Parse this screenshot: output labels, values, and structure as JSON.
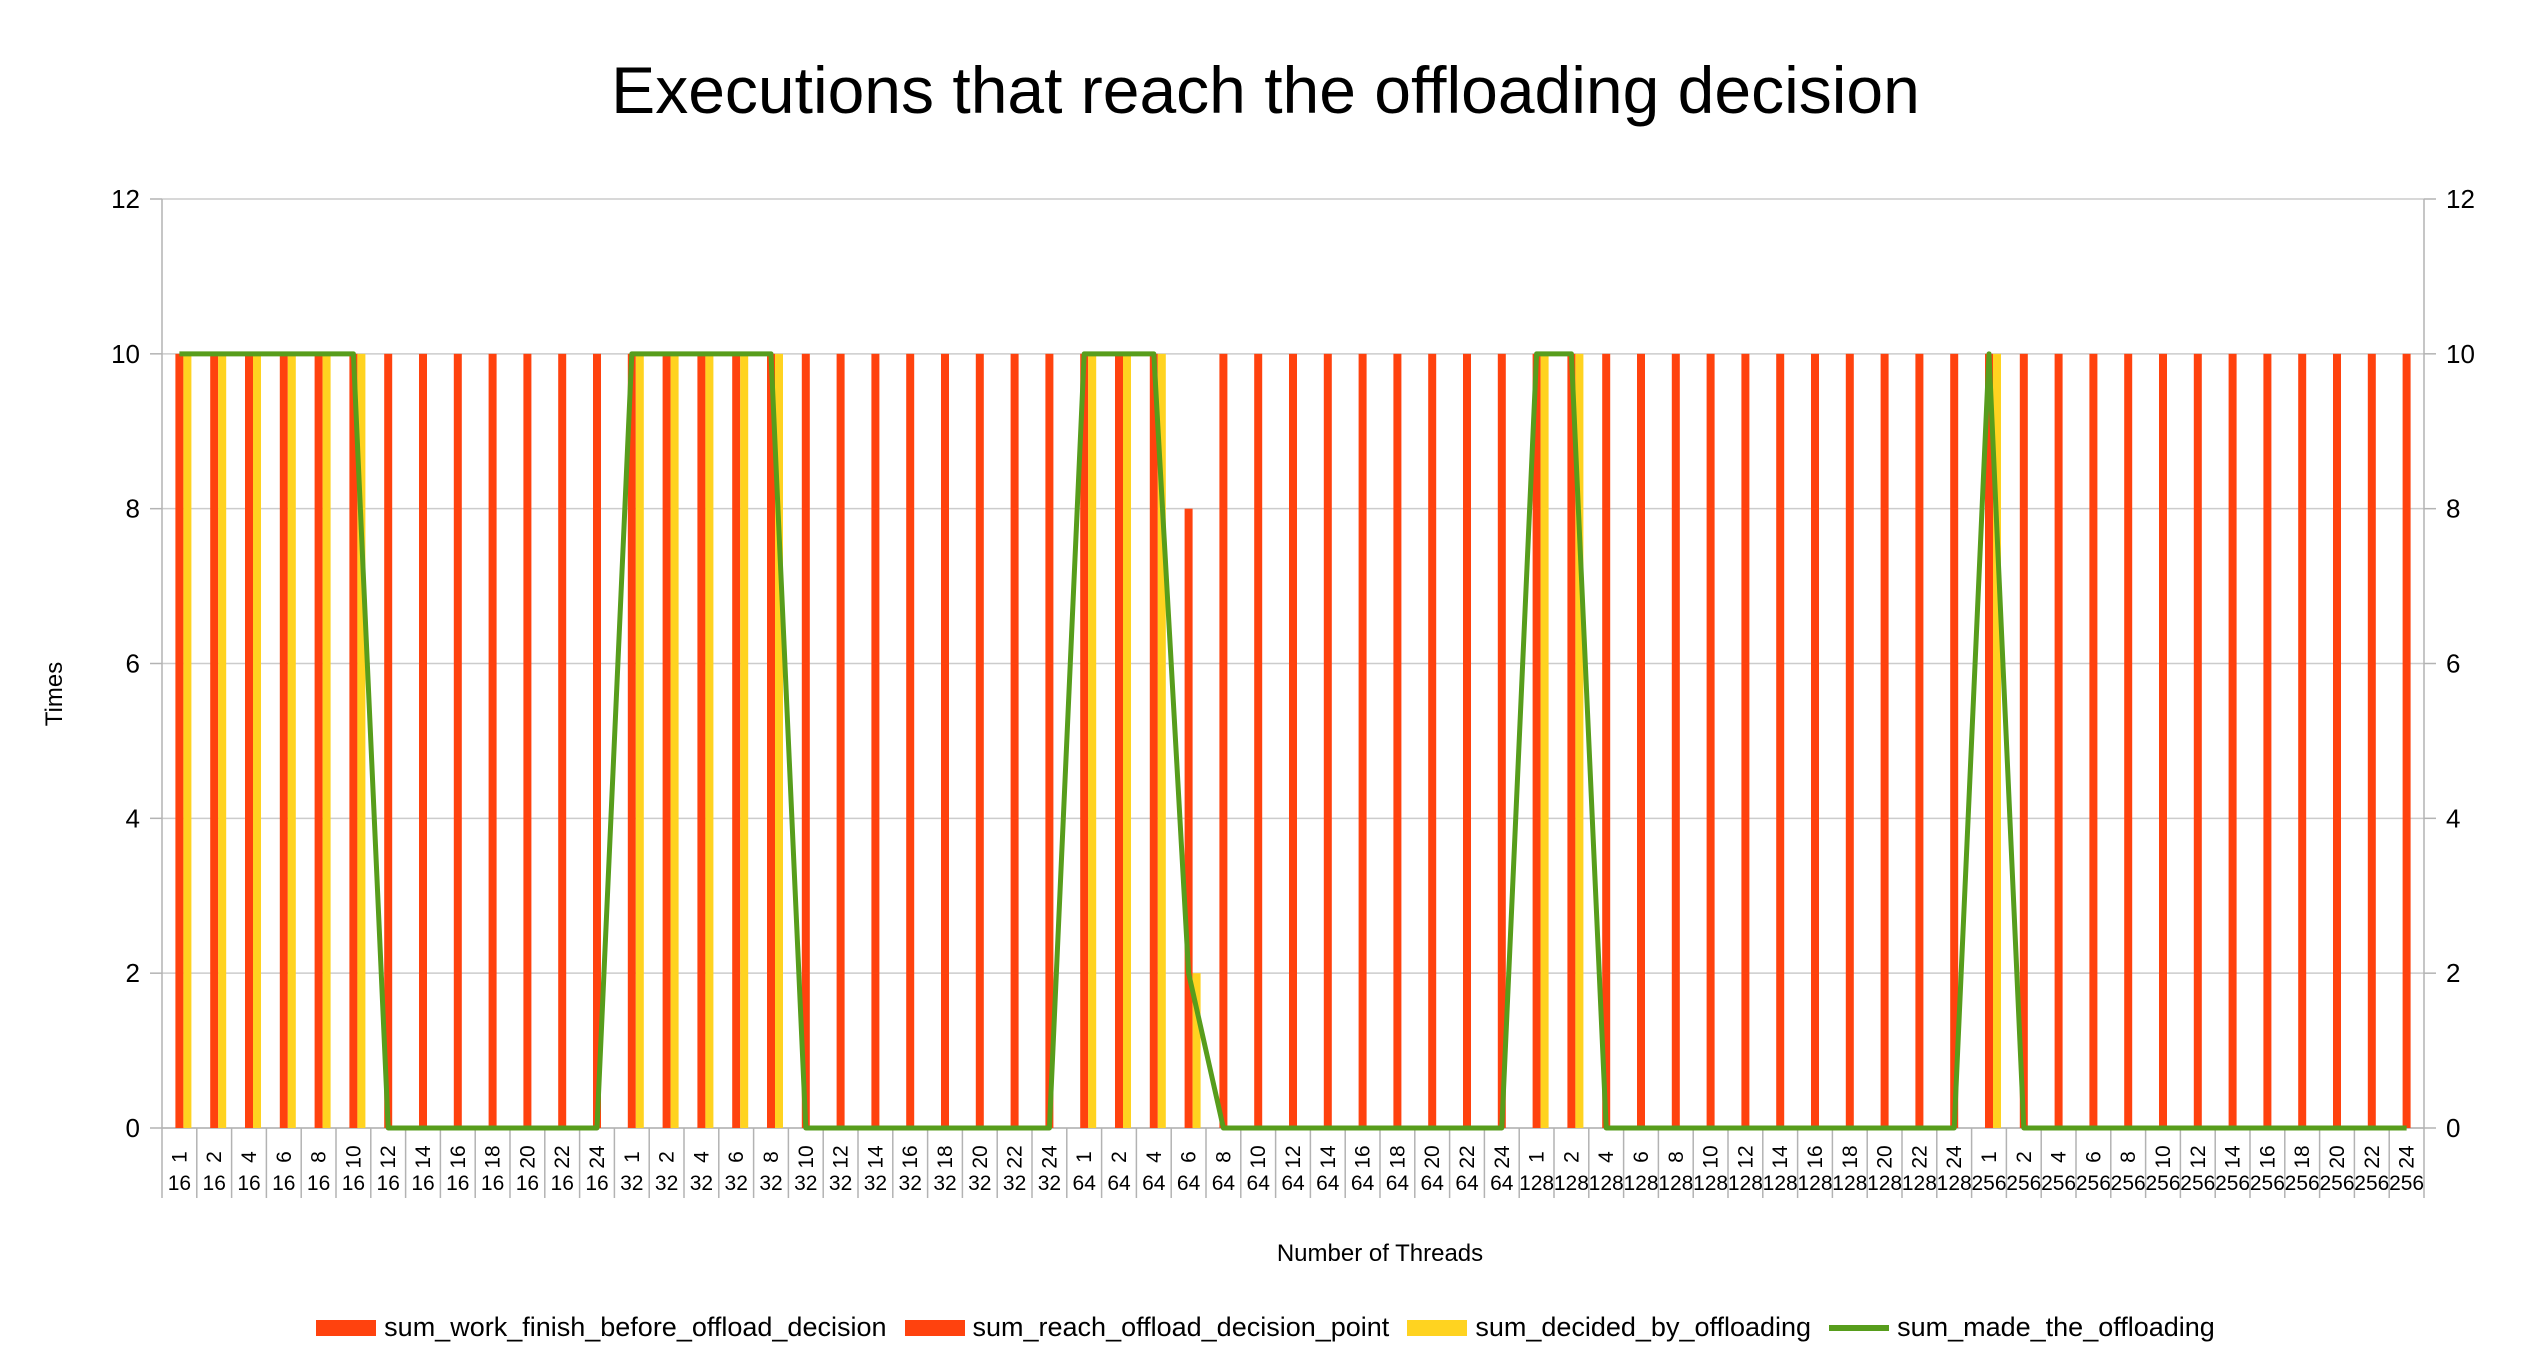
{
  "chart_data": {
    "type": "bar",
    "title": "Executions that reach the offloading decision",
    "xlabel": "Number of Threads",
    "ylabel": "Times",
    "ylim": [
      0,
      12
    ],
    "yticks": [
      "0",
      "2",
      "4",
      "6",
      "8",
      "10",
      "12"
    ],
    "grid": true,
    "legend_position": "bottom",
    "categories": [
      {
        "top": "1",
        "bottom": "16"
      },
      {
        "top": "2",
        "bottom": "16"
      },
      {
        "top": "4",
        "bottom": "16"
      },
      {
        "top": "6",
        "bottom": "16"
      },
      {
        "top": "8",
        "bottom": "16"
      },
      {
        "top": "10",
        "bottom": "16"
      },
      {
        "top": "12",
        "bottom": "16"
      },
      {
        "top": "14",
        "bottom": "16"
      },
      {
        "top": "16",
        "bottom": "16"
      },
      {
        "top": "18",
        "bottom": "16"
      },
      {
        "top": "20",
        "bottom": "16"
      },
      {
        "top": "22",
        "bottom": "16"
      },
      {
        "top": "24",
        "bottom": "16"
      },
      {
        "top": "1",
        "bottom": "32"
      },
      {
        "top": "2",
        "bottom": "32"
      },
      {
        "top": "4",
        "bottom": "32"
      },
      {
        "top": "6",
        "bottom": "32"
      },
      {
        "top": "8",
        "bottom": "32"
      },
      {
        "top": "10",
        "bottom": "32"
      },
      {
        "top": "12",
        "bottom": "32"
      },
      {
        "top": "14",
        "bottom": "32"
      },
      {
        "top": "16",
        "bottom": "32"
      },
      {
        "top": "18",
        "bottom": "32"
      },
      {
        "top": "20",
        "bottom": "32"
      },
      {
        "top": "22",
        "bottom": "32"
      },
      {
        "top": "24",
        "bottom": "32"
      },
      {
        "top": "1",
        "bottom": "64"
      },
      {
        "top": "2",
        "bottom": "64"
      },
      {
        "top": "4",
        "bottom": "64"
      },
      {
        "top": "6",
        "bottom": "64"
      },
      {
        "top": "8",
        "bottom": "64"
      },
      {
        "top": "10",
        "bottom": "64"
      },
      {
        "top": "12",
        "bottom": "64"
      },
      {
        "top": "14",
        "bottom": "64"
      },
      {
        "top": "16",
        "bottom": "64"
      },
      {
        "top": "18",
        "bottom": "64"
      },
      {
        "top": "20",
        "bottom": "64"
      },
      {
        "top": "22",
        "bottom": "64"
      },
      {
        "top": "24",
        "bottom": "64"
      },
      {
        "top": "1",
        "bottom": "128"
      },
      {
        "top": "2",
        "bottom": "128"
      },
      {
        "top": "4",
        "bottom": "128"
      },
      {
        "top": "6",
        "bottom": "128"
      },
      {
        "top": "8",
        "bottom": "128"
      },
      {
        "top": "10",
        "bottom": "128"
      },
      {
        "top": "12",
        "bottom": "128"
      },
      {
        "top": "14",
        "bottom": "128"
      },
      {
        "top": "16",
        "bottom": "128"
      },
      {
        "top": "18",
        "bottom": "128"
      },
      {
        "top": "20",
        "bottom": "128"
      },
      {
        "top": "22",
        "bottom": "128"
      },
      {
        "top": "24",
        "bottom": "128"
      },
      {
        "top": "1",
        "bottom": "256"
      },
      {
        "top": "2",
        "bottom": "256"
      },
      {
        "top": "4",
        "bottom": "256"
      },
      {
        "top": "6",
        "bottom": "256"
      },
      {
        "top": "8",
        "bottom": "256"
      },
      {
        "top": "10",
        "bottom": "256"
      },
      {
        "top": "12",
        "bottom": "256"
      },
      {
        "top": "14",
        "bottom": "256"
      },
      {
        "top": "16",
        "bottom": "256"
      },
      {
        "top": "18",
        "bottom": "256"
      },
      {
        "top": "20",
        "bottom": "256"
      },
      {
        "top": "22",
        "bottom": "256"
      },
      {
        "top": "24",
        "bottom": "256"
      }
    ],
    "series": [
      {
        "name": "sum_work_finish_before_offload_decision",
        "type": "bar",
        "color": "#ff420e",
        "values": [
          0,
          0,
          0,
          0,
          0,
          0,
          0,
          0,
          0,
          0,
          0,
          0,
          0,
          0,
          0,
          0,
          0,
          0,
          0,
          0,
          0,
          0,
          0,
          0,
          0,
          0,
          0,
          0,
          0,
          0,
          0,
          0,
          0,
          0,
          0,
          0,
          0,
          0,
          0,
          0,
          0,
          0,
          0,
          0,
          0,
          0,
          0,
          0,
          0,
          0,
          0,
          0,
          0,
          0,
          0,
          0,
          0,
          0,
          0,
          0,
          0,
          0,
          0,
          0,
          0
        ]
      },
      {
        "name": "sum_reach_offload_decision_point",
        "type": "bar",
        "color": "#ff420e",
        "values": [
          10,
          10,
          10,
          10,
          10,
          10,
          10,
          10,
          10,
          10,
          10,
          10,
          10,
          10,
          10,
          10,
          10,
          10,
          10,
          10,
          10,
          10,
          10,
          10,
          10,
          10,
          10,
          10,
          10,
          8,
          10,
          10,
          10,
          10,
          10,
          10,
          10,
          10,
          10,
          10,
          10,
          10,
          10,
          10,
          10,
          10,
          10,
          10,
          10,
          10,
          10,
          10,
          10,
          10,
          10,
          10,
          10,
          10,
          10,
          10,
          10,
          10,
          10,
          10,
          10
        ]
      },
      {
        "name": "sum_decided_by_offloading",
        "type": "bar",
        "color": "#ffd320",
        "values": [
          10,
          10,
          10,
          10,
          10,
          10,
          0,
          0,
          0,
          0,
          0,
          0,
          0,
          10,
          10,
          10,
          10,
          10,
          0,
          0,
          0,
          0,
          0,
          0,
          0,
          0,
          10,
          10,
          10,
          2,
          0,
          0,
          0,
          0,
          0,
          0,
          0,
          0,
          0,
          10,
          10,
          0,
          0,
          0,
          0,
          0,
          0,
          0,
          0,
          0,
          0,
          0,
          10,
          0,
          0,
          0,
          0,
          0,
          0,
          0,
          0,
          0,
          0,
          0,
          0
        ]
      },
      {
        "name": "sum_made_the_offloading",
        "type": "line",
        "color": "#579d1c",
        "values": [
          10,
          10,
          10,
          10,
          10,
          10,
          0,
          0,
          0,
          0,
          0,
          0,
          0,
          10,
          10,
          10,
          10,
          10,
          0,
          0,
          0,
          0,
          0,
          0,
          0,
          0,
          10,
          10,
          10,
          2,
          0,
          0,
          0,
          0,
          0,
          0,
          0,
          0,
          0,
          10,
          10,
          0,
          0,
          0,
          0,
          0,
          0,
          0,
          0,
          0,
          0,
          0,
          10,
          0,
          0,
          0,
          0,
          0,
          0,
          0,
          0,
          0,
          0,
          0,
          0
        ]
      }
    ]
  }
}
